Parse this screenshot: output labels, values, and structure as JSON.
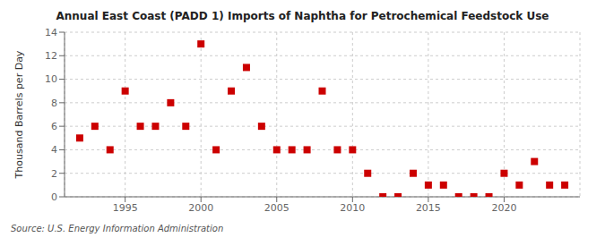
{
  "chart_data": {
    "type": "scatter",
    "title": "Annual East Coast (PADD 1) Imports of Naphtha for Petrochemical Feedstock Use",
    "ylabel": "Thousand Barrels per Day",
    "annotations": [
      "Source: U.S. Energy Information Administration"
    ],
    "x": [
      1992,
      1993,
      1994,
      1995,
      1996,
      1997,
      1998,
      1999,
      2000,
      2001,
      2002,
      2003,
      2004,
      2005,
      2006,
      2007,
      2008,
      2009,
      2010,
      2011,
      2012,
      2013,
      2014,
      2015,
      2016,
      2017,
      2018,
      2019,
      2020,
      2021,
      2022,
      2023,
      2024
    ],
    "values": [
      5,
      6,
      4,
      9,
      6,
      6,
      8,
      6,
      13,
      4,
      9,
      11,
      6,
      4,
      4,
      4,
      9,
      4,
      4,
      2,
      0,
      0,
      2,
      1,
      1,
      0,
      0,
      0,
      2,
      1,
      3,
      1,
      1
    ],
    "color": "#cc0000",
    "marker": "square",
    "xlim": [
      1991,
      2025
    ],
    "xticks": [
      1995,
      2000,
      2005,
      2010,
      2015,
      2020
    ],
    "ylim": [
      0,
      14
    ],
    "yticks": [
      0,
      2,
      4,
      6,
      8,
      10,
      12,
      14
    ],
    "grid": true
  }
}
